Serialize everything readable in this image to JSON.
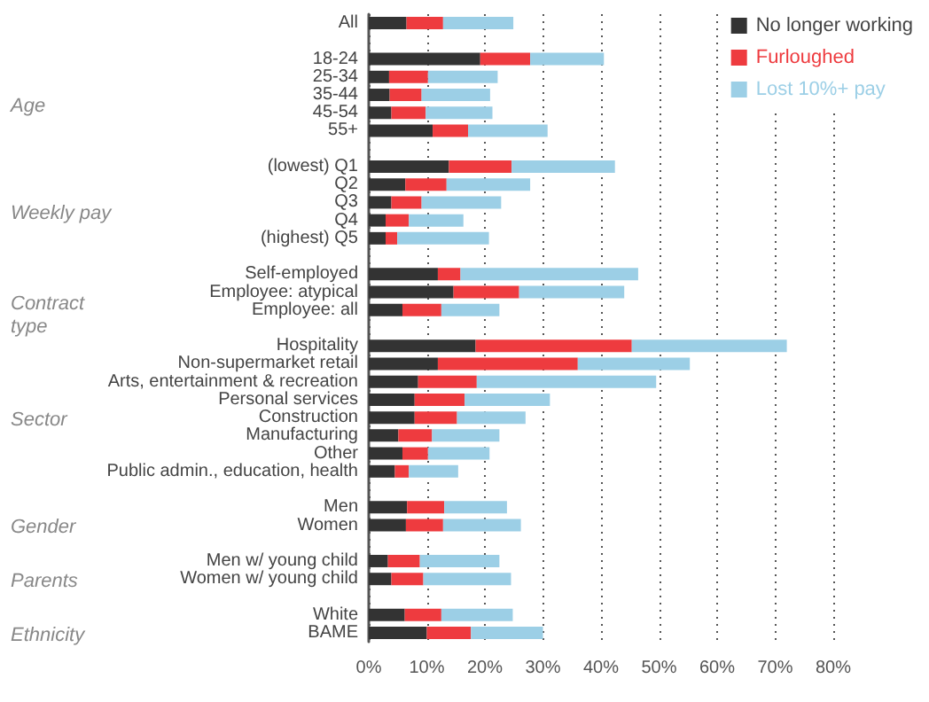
{
  "chart_data": {
    "type": "bar",
    "orientation": "horizontal",
    "stacked": true,
    "categories": [
      "All",
      null,
      "18-24",
      "25-34",
      "35-44",
      "45-54",
      "55+",
      null,
      "(lowest) Q1",
      "Q2",
      "Q3",
      "Q4",
      "(highest) Q5",
      null,
      "Self-employed",
      "Employee: atypical",
      "Employee: all",
      null,
      "Hospitality",
      "Non-supermarket retail",
      "Arts, entertainment & recreation",
      "Personal services",
      "Construction",
      "Manufacturing",
      "Other",
      "Public admin., education, health",
      null,
      "Men",
      "Women",
      null,
      "Men w/ young child",
      "Women w/ young child",
      null,
      "White",
      "BAME"
    ],
    "series": [
      {
        "name": "No longer working",
        "color": "#333333",
        "values": [
          6.5,
          null,
          19.2,
          3.5,
          3.6,
          3.9,
          11.0,
          null,
          13.8,
          6.3,
          3.9,
          2.9,
          2.9,
          null,
          11.9,
          14.6,
          5.8,
          null,
          18.4,
          11.9,
          8.5,
          7.9,
          7.9,
          5.1,
          5.8,
          4.5,
          null,
          6.6,
          6.4,
          null,
          3.3,
          3.9,
          null,
          6.2,
          10.0
        ]
      },
      {
        "name": "Furloughed",
        "color": "#ee3b3f",
        "values": [
          6.3,
          null,
          8.6,
          6.7,
          5.5,
          5.9,
          6.1,
          null,
          10.8,
          7.1,
          5.2,
          4.0,
          2.0,
          null,
          3.9,
          11.3,
          6.7,
          null,
          26.9,
          24.1,
          10.1,
          8.6,
          7.3,
          5.8,
          4.4,
          2.4,
          null,
          6.4,
          6.4,
          null,
          5.5,
          5.5,
          null,
          6.3,
          7.6
        ]
      },
      {
        "name": "Lost 10%+ pay",
        "color": "#9ccfe6",
        "values": [
          12.1,
          null,
          12.7,
          12.0,
          11.8,
          11.5,
          13.7,
          null,
          17.8,
          14.4,
          13.7,
          9.4,
          15.8,
          null,
          30.6,
          18.1,
          10.0,
          null,
          26.7,
          19.3,
          30.9,
          14.7,
          11.8,
          11.6,
          10.6,
          8.5,
          null,
          10.8,
          13.4,
          null,
          13.7,
          15.1,
          null,
          12.3,
          12.4
        ]
      }
    ],
    "xlim": [
      0,
      80
    ],
    "xticks": [
      {
        "value": 0,
        "label": "0%"
      },
      {
        "value": 10,
        "label": "10%"
      },
      {
        "value": 20,
        "label": "20%"
      },
      {
        "value": 30,
        "label": "30%"
      },
      {
        "value": 40,
        "label": "40%"
      },
      {
        "value": 50,
        "label": "50%"
      },
      {
        "value": 60,
        "label": "60%"
      },
      {
        "value": 70,
        "label": "70%"
      },
      {
        "value": 80,
        "label": "80%"
      }
    ],
    "grid": "x",
    "legend": "top right",
    "annotations": [
      "Age",
      "Weekly pay",
      "Contract type",
      "Sector",
      "Gender",
      "Parents",
      "Ethnicity"
    ]
  }
}
